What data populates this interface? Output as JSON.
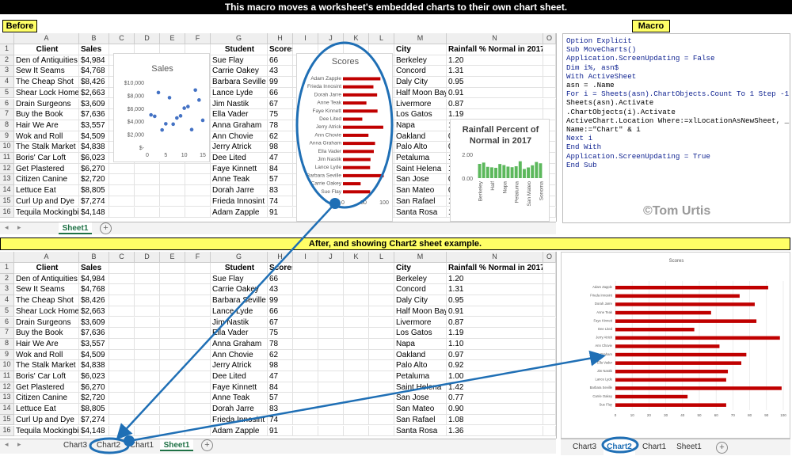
{
  "top_banner": "This macro moves a worksheet's embedded charts to their own chart sheet.",
  "before_label": "Before",
  "macro_label": "Macro",
  "after_banner": "After, and showing Chart2 sheet example.",
  "columns": [
    "A",
    "B",
    "C",
    "D",
    "E",
    "F",
    "G",
    "H",
    "I",
    "J",
    "K",
    "L",
    "M",
    "N",
    "O"
  ],
  "headers": {
    "client": "Client",
    "sales": "Sales",
    "student": "Student",
    "scores": "Scores",
    "city": "City",
    "rainfall": "Rainfall % Normal in 2017"
  },
  "rows": [
    {
      "client": "Den of Antiquities",
      "sales": "$4,984",
      "student": "Sue Flay",
      "score": "66",
      "city": "Berkeley",
      "rain": "1.20"
    },
    {
      "client": "Sew It Seams",
      "sales": "$4,768",
      "student": "Carrie Oakey",
      "score": "43",
      "city": "Concord",
      "rain": "1.31"
    },
    {
      "client": "The Cheap Shot",
      "sales": "$8,426",
      "student": "Barbara Seville",
      "score": "99",
      "city": "Daly City",
      "rain": "0.95"
    },
    {
      "client": "Shear Lock Homes",
      "sales": "$2,663",
      "student": "Lance Lyde",
      "score": "66",
      "city": "Half Moon Bay",
      "rain": "0.91"
    },
    {
      "client": "Drain Surgeons",
      "sales": "$3,609",
      "student": "Jim Nastik",
      "score": "67",
      "city": "Livermore",
      "rain": "0.87"
    },
    {
      "client": "Buy the Book",
      "sales": "$7,636",
      "student": "Ella Vader",
      "score": "75",
      "city": "Los Gatos",
      "rain": "1.19"
    },
    {
      "client": "Hair We Are",
      "sales": "$3,557",
      "student": "Anna Graham",
      "score": "78",
      "city": "Napa",
      "rain": "1.10"
    },
    {
      "client": "Wok and Roll",
      "sales": "$4,509",
      "student": "Ann Chovie",
      "score": "62",
      "city": "Oakland",
      "rain": "0.97"
    },
    {
      "client": "The Stalk Market",
      "sales": "$4,838",
      "student": "Jerry Atrick",
      "score": "98",
      "city": "Palo Alto",
      "rain": "0.92"
    },
    {
      "client": "Boris' Car Loft",
      "sales": "$6,023",
      "student": "Dee Lited",
      "score": "47",
      "city": "Petaluma",
      "rain": "1.00"
    },
    {
      "client": "Get Plastered",
      "sales": "$6,270",
      "student": "Faye Kinnett",
      "score": "84",
      "city": "Saint Helena",
      "rain": "1.42"
    },
    {
      "client": "Citizen Canine",
      "sales": "$2,720",
      "student": "Anne Teak",
      "score": "57",
      "city": "San Jose",
      "rain": "0.77"
    },
    {
      "client": "Lettuce Eat",
      "sales": "$8,805",
      "student": "Dorah Jarre",
      "score": "83",
      "city": "San Mateo",
      "rain": "0.90"
    },
    {
      "client": "Curl Up and Dye",
      "sales": "$7,274",
      "student": "Frieda Innosint",
      "score": "74",
      "city": "San Rafael",
      "rain": "1.08"
    },
    {
      "client": "Tequila Mockingbird",
      "sales": "$4,148",
      "student": "Adam Zapple",
      "score": "91",
      "city": "Santa Rosa",
      "rain": "1.36"
    }
  ],
  "tabs_before": [
    "Sheet1"
  ],
  "tabs_after": [
    "Chart3",
    "Chart2",
    "Chart1",
    "Sheet1"
  ],
  "tabs_right": [
    "Chart3",
    "Chart2",
    "Chart1",
    "Sheet1"
  ],
  "code_lines": [
    "Option Explicit",
    "",
    "Sub MoveCharts()",
    "Application.ScreenUpdating = False",
    "Dim i%, asn$",
    "With ActiveSheet",
    "asn = .Name",
    "For i = Sheets(asn).ChartObjects.Count To 1 Step -1",
    "Sheets(asn).Activate",
    ".ChartObjects(i).Activate",
    "ActiveChart.Location Where:=xlLocationAsNewSheet, _",
    "Name:=\"Chart\" & i",
    "Next i",
    "End With",
    "Application.ScreenUpdating = True",
    "End Sub"
  ],
  "copyright": "©Tom Urtis",
  "colors": {
    "bar_red": "#c00000",
    "bar_green": "#5cb85c",
    "scatter_blue": "#4472c4",
    "annot_blue": "#1f6fb5",
    "banner_yellow": "#ffff66"
  },
  "chart_data": [
    {
      "type": "scatter",
      "title": "Sales",
      "ytick_labels": [
        "$10,000",
        "$8,000",
        "$6,000",
        "$4,000",
        "$2,000",
        "$-"
      ],
      "xtick_labels": [
        "0",
        "5",
        "10",
        "15"
      ],
      "x": [
        1,
        2,
        3,
        4,
        5,
        6,
        7,
        8,
        9,
        10,
        11,
        12,
        13,
        14,
        15
      ],
      "y": [
        4984,
        4768,
        8426,
        2663,
        3609,
        7636,
        3557,
        4509,
        4838,
        6023,
        6270,
        2720,
        8805,
        7274,
        4148
      ],
      "xlim": [
        0,
        15
      ],
      "ylim": [
        0,
        10000
      ]
    },
    {
      "type": "bar",
      "title": "Scores",
      "categories": [
        "Adam Zapple",
        "Frieda Innosint",
        "Dorah Jarre",
        "Anne Teak",
        "Faye Kinnett",
        "Dee Lited",
        "Jerry Atrick",
        "Ann Chovie",
        "Anna Graham",
        "Ella Vader",
        "Jim Nastik",
        "Lance Lyde",
        "Barbara Seville",
        "Carrie Oakey",
        "Sue Flay"
      ],
      "values": [
        91,
        74,
        83,
        57,
        84,
        47,
        98,
        62,
        78,
        75,
        67,
        66,
        99,
        43,
        66
      ],
      "xtick_labels": [
        "0",
        "50",
        "100"
      ],
      "xlim": [
        0,
        100
      ]
    },
    {
      "type": "bar",
      "title": "Rainfall Percent of Normal in 2017",
      "categories": [
        "Berkeley",
        "Concord",
        "Daly City",
        "Half Moon Bay",
        "Livermore",
        "Los Gatos",
        "Napa",
        "Oakland",
        "Palo Alto",
        "Petaluma",
        "Saint Helena",
        "San Jose",
        "San Mateo",
        "San Rafael",
        "Santa Rosa",
        "Sonoma"
      ],
      "xtick_labels": [
        "Berkeley",
        "Half",
        "Napa",
        "Petaluma",
        "San Mateo",
        "Sonoma"
      ],
      "values": [
        1.2,
        1.31,
        0.95,
        0.91,
        0.87,
        1.19,
        1.1,
        0.97,
        0.92,
        1.0,
        1.42,
        0.77,
        0.9,
        1.08,
        1.36,
        1.25
      ],
      "ytick_labels": [
        "2.00",
        "0.00"
      ],
      "ylim": [
        0,
        2
      ]
    },
    {
      "type": "bar",
      "title": "Scores",
      "categories": [
        "Adam Zapple",
        "Frieda Innosint",
        "Dorah Jarre",
        "Anne Teak",
        "Faye Kinnett",
        "Dee Lited",
        "Jerry Atrick",
        "Ann Chovie",
        "Anna Graham",
        "Ella Vader",
        "Jim Nastik",
        "Lance Lyde",
        "Barbara Seville",
        "Carrie Oakey",
        "Sue Flay"
      ],
      "values": [
        91,
        74,
        83,
        57,
        84,
        47,
        98,
        62,
        78,
        75,
        67,
        66,
        99,
        43,
        66
      ],
      "xtick_labels": [
        "0",
        "10",
        "20",
        "30",
        "40",
        "50",
        "60",
        "70",
        "80",
        "90",
        "100"
      ],
      "xlim": [
        0,
        100
      ]
    }
  ]
}
